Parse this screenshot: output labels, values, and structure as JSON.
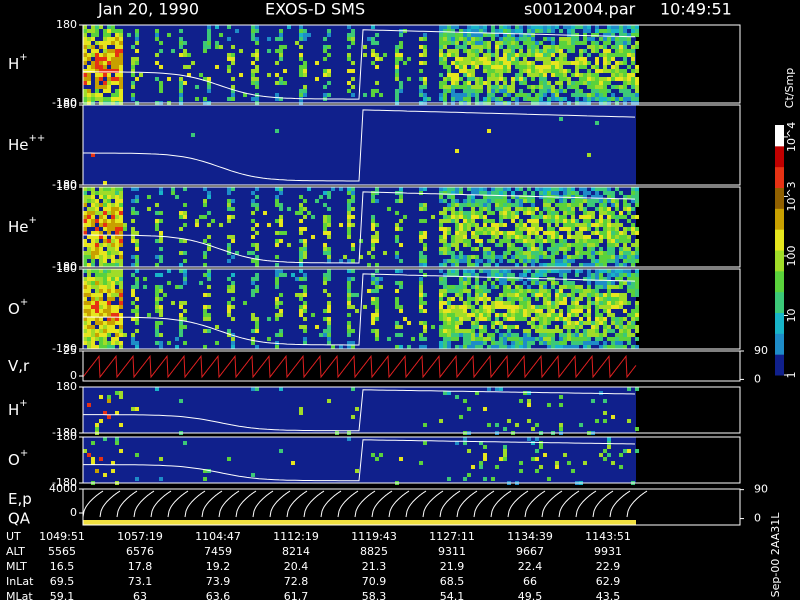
{
  "header": {
    "date": "Jan 20, 1990",
    "instrument": "EXOS-D SMS",
    "file": "s0012004.par",
    "time": "10:49:51"
  },
  "chart_data": [
    {
      "type": "spectrogram",
      "label": "H",
      "label_sup": "+",
      "ylim": [
        -180,
        180
      ],
      "yticks": [
        -180,
        180
      ]
    },
    {
      "type": "spectrogram",
      "label": "He",
      "label_sup": "++",
      "ylim": [
        -180,
        180
      ],
      "yticks": [
        -180,
        180
      ]
    },
    {
      "type": "spectrogram",
      "label": "He",
      "label_sup": "+",
      "ylim": [
        -180,
        180
      ],
      "yticks": [
        -180,
        180
      ]
    },
    {
      "type": "spectrogram",
      "label": "O",
      "label_sup": "+",
      "ylim": [
        -180,
        180
      ],
      "yticks": [
        -180,
        180
      ]
    },
    {
      "type": "velocity",
      "label": "V,r",
      "ylim": [
        -5,
        25
      ],
      "yticks": [
        0,
        25
      ],
      "y2lim": [
        -5,
        90
      ],
      "y2ticks": [
        0,
        90
      ]
    },
    {
      "type": "spectrogram",
      "label": "H",
      "label_sup": "+",
      "ylim": [
        -180,
        180
      ],
      "yticks": [
        -180,
        180
      ]
    },
    {
      "type": "spectrogram",
      "label": "O",
      "label_sup": "+",
      "ylim": [
        -180,
        180
      ],
      "yticks": [
        -180,
        180
      ]
    },
    {
      "type": "energy",
      "label": "E,p",
      "label2": "QA",
      "ylim": [
        -2000,
        4000
      ],
      "yticks": [
        0,
        4000
      ],
      "y2lim": [
        -20,
        92
      ],
      "y2ticks": [
        0,
        90
      ]
    }
  ],
  "colorbar": {
    "title": "Ct/Smp",
    "ticks": [
      {
        "value": 1,
        "label": "1"
      },
      {
        "value": 10,
        "label": "10"
      },
      {
        "value": 100,
        "label": "100"
      },
      {
        "value": 1000,
        "label": "10^3"
      },
      {
        "value": 10000,
        "label": "10^4"
      }
    ]
  },
  "orbit_table": {
    "rows": [
      {
        "name": "UT",
        "values": [
          "1049:51",
          "1057:19",
          "1104:47",
          "1112:19",
          "1119:43",
          "1127:11",
          "1134:39",
          "1143:51"
        ]
      },
      {
        "name": "ALT",
        "values": [
          5565,
          6576,
          7459,
          8214,
          8825,
          9311,
          9667,
          9931
        ]
      },
      {
        "name": "MLT",
        "values": [
          16.5,
          17.8,
          19.2,
          20.4,
          21.3,
          21.9,
          22.4,
          22.9
        ]
      },
      {
        "name": "InLat",
        "values": [
          69.5,
          73.1,
          73.9,
          72.8,
          70.9,
          68.5,
          66.0,
          62.9
        ]
      },
      {
        "name": "MLat",
        "values": [
          59.1,
          63.0,
          63.6,
          61.7,
          58.3,
          54.1,
          49.5,
          43.5
        ]
      }
    ]
  },
  "footer": "Sep-00 2AA31L"
}
